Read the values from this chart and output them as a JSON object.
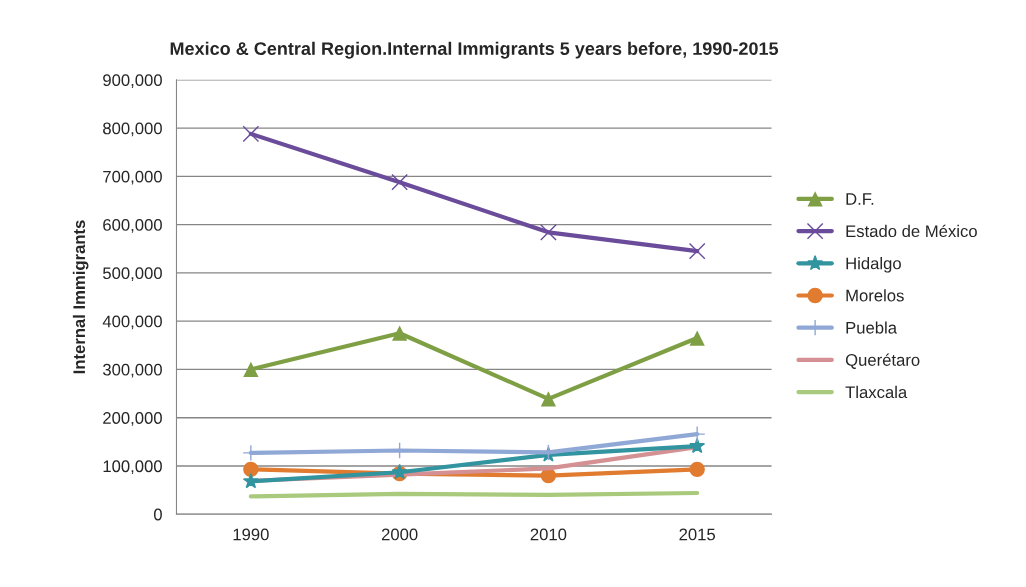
{
  "chart_data": {
    "type": "line",
    "title": "Mexico & Central Region.Internal Immigrants 5 years before, 1990-2015",
    "ylabel": "Internal Immigrants",
    "categories": [
      "1990",
      "2000",
      "2010",
      "2015"
    ],
    "series": [
      {
        "name": "D.F.",
        "color": "#7f9f45",
        "marker": "triangle",
        "values": [
          300000,
          375000,
          239000,
          365000
        ]
      },
      {
        "name": "Estado de México",
        "color": "#6b4c9a",
        "marker": "cross",
        "values": [
          788000,
          688000,
          584000,
          545000
        ]
      },
      {
        "name": "Hidalgo",
        "color": "#31949f",
        "marker": "star",
        "values": [
          68000,
          87000,
          123000,
          141000
        ]
      },
      {
        "name": "Morelos",
        "color": "#e07b30",
        "marker": "circle",
        "values": [
          93000,
          84000,
          80000,
          93000
        ]
      },
      {
        "name": "Puebla",
        "color": "#8fa8d6",
        "marker": "plus",
        "values": [
          127000,
          132000,
          128000,
          166000
        ]
      },
      {
        "name": "Querétaro",
        "color": "#d49092",
        "marker": "none",
        "values": [
          69000,
          82000,
          95000,
          139000
        ]
      },
      {
        "name": "Tlaxcala",
        "color": "#a9c97c",
        "marker": "none",
        "values": [
          37000,
          42000,
          40000,
          44000
        ]
      }
    ],
    "ylim": [
      0,
      900000
    ],
    "yticks": [
      {
        "value": 0,
        "label": "0"
      },
      {
        "value": 100000,
        "label": "100,000"
      },
      {
        "value": 200000,
        "label": "200,000"
      },
      {
        "value": 300000,
        "label": "300,000"
      },
      {
        "value": 400000,
        "label": "400,000"
      },
      {
        "value": 500000,
        "label": "500,000"
      },
      {
        "value": 600000,
        "label": "600,000"
      },
      {
        "value": 700000,
        "label": "700,000"
      },
      {
        "value": 800000,
        "label": "800,000"
      },
      {
        "value": 900000,
        "label": "900,000"
      }
    ],
    "grid": "y",
    "legend": "right"
  }
}
